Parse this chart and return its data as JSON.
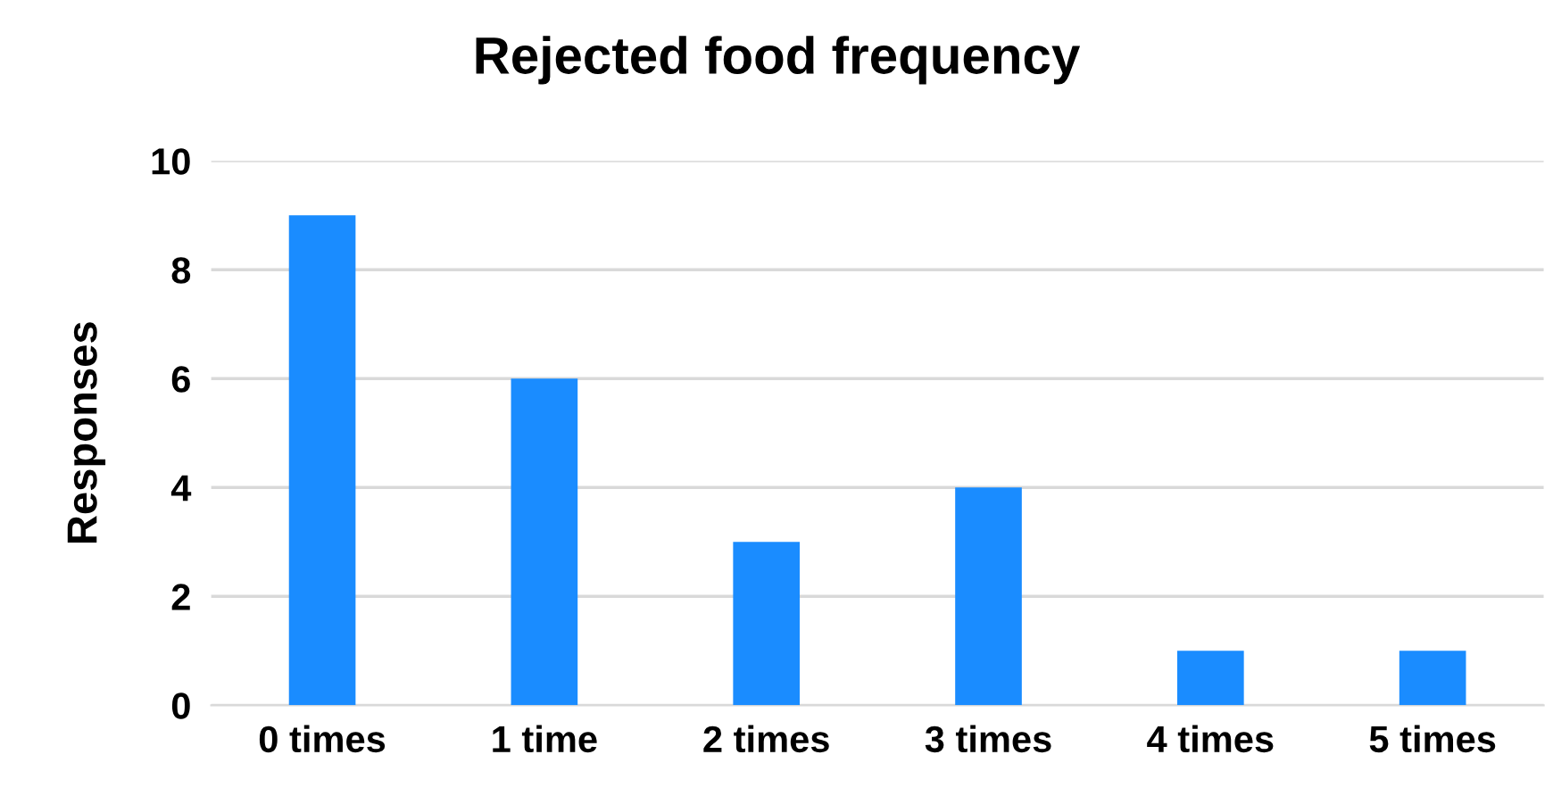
{
  "chart_data": {
    "type": "bar",
    "title": "Rejected food frequency",
    "ylabel": "Responses",
    "categories": [
      "0 times",
      "1 time",
      "2 times",
      "3 times",
      "4 times",
      "5 times"
    ],
    "values": [
      9,
      6,
      3,
      4,
      1,
      1
    ],
    "color": "#1a8cff",
    "ylim": [
      0,
      10
    ],
    "yticks": [
      0,
      2,
      4,
      6,
      8,
      10
    ],
    "grid": "y"
  }
}
